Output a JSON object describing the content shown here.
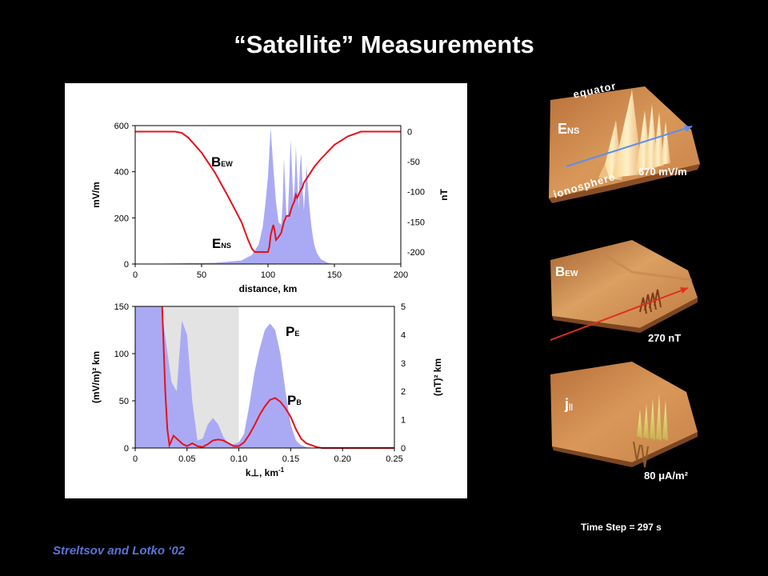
{
  "title": "“Satellite” Measurements",
  "credit": "Streltsov and Lotko ‘02",
  "time_step": "Time Step = 297 s",
  "colors": {
    "fill": "#aaaaf4",
    "line": "#e8101a",
    "shade": "#e3e3e3",
    "arrow_blue": "#5b8ef0",
    "arrow_red": "#e0301e",
    "surface": "#d9985a"
  },
  "right_panels": [
    {
      "label_main": "E",
      "label_sub": "NS",
      "value": "670 mV/m",
      "top_label": "equator",
      "bottom_label": "ionosphere"
    },
    {
      "label_main": "B",
      "label_sub": "EW",
      "value": "270 nT"
    },
    {
      "label_main": "j",
      "label_sub": "||",
      "value": "80 μA/m²"
    }
  ],
  "chart_data": [
    {
      "type": "area",
      "xlabel": "distance,  km",
      "ylabel": "mV/m",
      "ylabel_right": "nT",
      "xlim": [
        0,
        200
      ],
      "ylim": [
        0,
        600
      ],
      "ylim_right": [
        -220,
        10
      ],
      "x_ticks": [
        "0",
        "50",
        "100",
        "150",
        "200"
      ],
      "y_ticks": [
        "0",
        "200",
        "400",
        "600"
      ],
      "y_ticks_right": [
        "0",
        "-50",
        "-100",
        "-150",
        "-200"
      ],
      "annotations": [
        {
          "main": "B",
          "sub": "EW"
        },
        {
          "main": "E",
          "sub": "NS"
        }
      ],
      "series": [
        {
          "name": "E_NS",
          "axis": "left",
          "style": "fill",
          "x": [
            0,
            60,
            80,
            88,
            93,
            96,
            98,
            100,
            102,
            104,
            106,
            108,
            110,
            111,
            112,
            113,
            114,
            115,
            116,
            117,
            118,
            119,
            120,
            121,
            122,
            123,
            124,
            125,
            126,
            127,
            128,
            129,
            130,
            131,
            132,
            133,
            134,
            135,
            137,
            140,
            145,
            150,
            200
          ],
          "y": [
            0,
            5,
            15,
            40,
            85,
            160,
            260,
            380,
            590,
            420,
            270,
            180,
            170,
            260,
            460,
            330,
            190,
            220,
            360,
            540,
            420,
            280,
            330,
            510,
            380,
            240,
            420,
            480,
            340,
            230,
            330,
            430,
            340,
            260,
            200,
            150,
            110,
            80,
            45,
            20,
            5,
            0,
            0
          ]
        },
        {
          "name": "B_EW",
          "axis": "right",
          "style": "line",
          "x": [
            0,
            30,
            35,
            40,
            50,
            60,
            70,
            80,
            85,
            88,
            90,
            95,
            98,
            100,
            101,
            102,
            104,
            105,
            106,
            108,
            110,
            112,
            114,
            116,
            118,
            120,
            121,
            122,
            124,
            126,
            127,
            130,
            135,
            140,
            150,
            160,
            170,
            175,
            200
          ],
          "y": [
            0,
            0,
            -2,
            -10,
            -35,
            -68,
            -108,
            -150,
            -180,
            -195,
            -200,
            -200,
            -200,
            -200,
            -192,
            -172,
            -155,
            -165,
            -180,
            -175,
            -168,
            -150,
            -140,
            -140,
            -125,
            -115,
            -105,
            -110,
            -100,
            -92,
            -85,
            -75,
            -58,
            -45,
            -22,
            -8,
            0,
            0,
            0
          ]
        }
      ]
    },
    {
      "type": "area",
      "xlabel": "k⊥,  km",
      "xlabel_sup": "-1",
      "ylabel": "(mV/m)² km",
      "ylabel_right": "(nT)² km",
      "xlim": [
        0,
        0.25
      ],
      "ylim": [
        0,
        150
      ],
      "ylim_right": [
        0,
        5
      ],
      "x_ticks": [
        "0",
        "0.05",
        "0.10",
        "0.15",
        "0.20",
        "0.25"
      ],
      "y_ticks": [
        "0",
        "50",
        "100",
        "150"
      ],
      "y_ticks_right": [
        "0",
        "1",
        "2",
        "3",
        "4",
        "5"
      ],
      "shaded_band": [
        0.025,
        0.1
      ],
      "annotations": [
        {
          "main": "P",
          "sub": "E"
        },
        {
          "main": "P",
          "sub": "B"
        }
      ],
      "series": [
        {
          "name": "P_E",
          "axis": "left",
          "style": "fill",
          "x": [
            0,
            0.02,
            0.025,
            0.03,
            0.035,
            0.04,
            0.045,
            0.05,
            0.055,
            0.06,
            0.065,
            0.07,
            0.075,
            0.08,
            0.085,
            0.09,
            0.095,
            0.1,
            0.105,
            0.11,
            0.115,
            0.12,
            0.125,
            0.13,
            0.135,
            0.14,
            0.145,
            0.15,
            0.155,
            0.16,
            0.165,
            0.17,
            0.18,
            0.25
          ],
          "y": [
            150,
            150,
            150,
            110,
            70,
            60,
            135,
            120,
            50,
            8,
            10,
            25,
            32,
            25,
            12,
            4,
            4,
            6,
            15,
            45,
            80,
            105,
            125,
            132,
            125,
            100,
            60,
            25,
            8,
            3,
            1,
            0,
            0,
            0
          ]
        },
        {
          "name": "P_B",
          "axis": "left",
          "style": "line",
          "x": [
            0.026,
            0.029,
            0.031,
            0.033,
            0.035,
            0.037,
            0.04,
            0.043,
            0.046,
            0.05,
            0.055,
            0.06,
            0.065,
            0.07,
            0.075,
            0.08,
            0.085,
            0.09,
            0.095,
            0.1,
            0.105,
            0.11,
            0.115,
            0.12,
            0.125,
            0.13,
            0.135,
            0.14,
            0.145,
            0.15,
            0.155,
            0.16,
            0.165,
            0.17,
            0.175,
            0.18,
            0.2,
            0.25
          ],
          "y": [
            150,
            60,
            20,
            3,
            8,
            13,
            10,
            7,
            4,
            2,
            5,
            2,
            1,
            4,
            8,
            9,
            8,
            5,
            2,
            2,
            6,
            14,
            24,
            35,
            44,
            51,
            53,
            49,
            42,
            33,
            20,
            10,
            5,
            3,
            1,
            0,
            0,
            0
          ]
        }
      ]
    }
  ]
}
